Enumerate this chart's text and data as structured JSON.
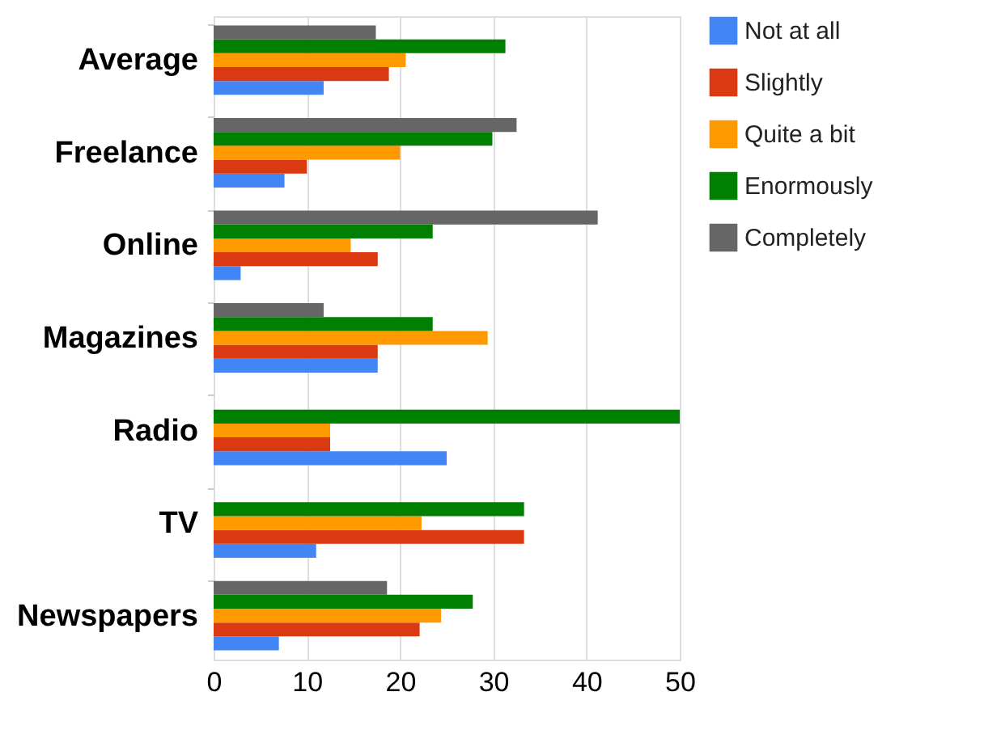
{
  "chart_data": {
    "type": "bar",
    "orientation": "horizontal",
    "categories": [
      "Average",
      "Freelance",
      "Online",
      "Magazines",
      "Radio",
      "TV",
      "Newspapers"
    ],
    "series": [
      {
        "name": "Not at all",
        "color": "#4285f4",
        "values": [
          11.8,
          7.6,
          2.9,
          17.6,
          25.0,
          11.0,
          7.0
        ]
      },
      {
        "name": "Slightly",
        "color": "#db3912",
        "values": [
          18.8,
          10.0,
          17.6,
          17.6,
          12.5,
          33.3,
          22.1
        ]
      },
      {
        "name": "Quite a bit",
        "color": "#ff9900",
        "values": [
          20.6,
          20.0,
          14.7,
          29.4,
          12.5,
          22.3,
          24.4
        ]
      },
      {
        "name": "Enormously",
        "color": "#008000",
        "values": [
          31.3,
          29.9,
          23.5,
          23.5,
          50.0,
          33.3,
          27.8
        ]
      },
      {
        "name": "Completely",
        "color": "#666666",
        "values": [
          17.4,
          32.5,
          41.2,
          11.8,
          null,
          null,
          18.6
        ]
      }
    ],
    "xlim": [
      0,
      50
    ],
    "xticks": [
      0,
      10,
      20,
      30,
      40,
      50
    ],
    "grid": "x",
    "legend": "right"
  }
}
